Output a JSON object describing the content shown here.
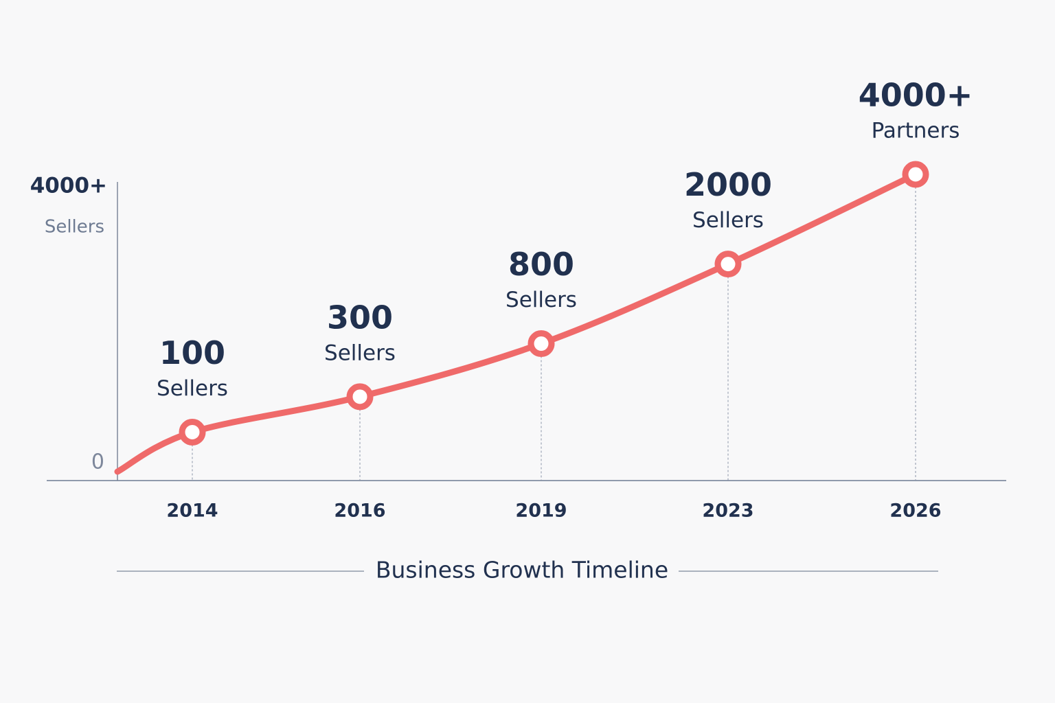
{
  "chart_data": {
    "type": "line",
    "title": "Business Growth Timeline",
    "categories": [
      "2014",
      "2016",
      "2019",
      "2023",
      "2026"
    ],
    "values": [
      100,
      300,
      800,
      2000,
      4000
    ],
    "point_labels": [
      {
        "value": "100",
        "unit": "Sellers"
      },
      {
        "value": "300",
        "unit": "Sellers"
      },
      {
        "value": "800",
        "unit": "Sellers"
      },
      {
        "value": "2000",
        "unit": "Sellers"
      },
      {
        "value": "4000+",
        "unit": "Partners"
      }
    ],
    "y_axis": {
      "top_label": "4000+",
      "top_sublabel": "Sellers",
      "bottom_label": "0"
    },
    "ylim": [
      0,
      4000
    ],
    "grid": false,
    "colors": {
      "line": "#ef6a6a",
      "text": "#21314f",
      "axis": "#6e7b92",
      "background": "#f8f8f9"
    }
  }
}
